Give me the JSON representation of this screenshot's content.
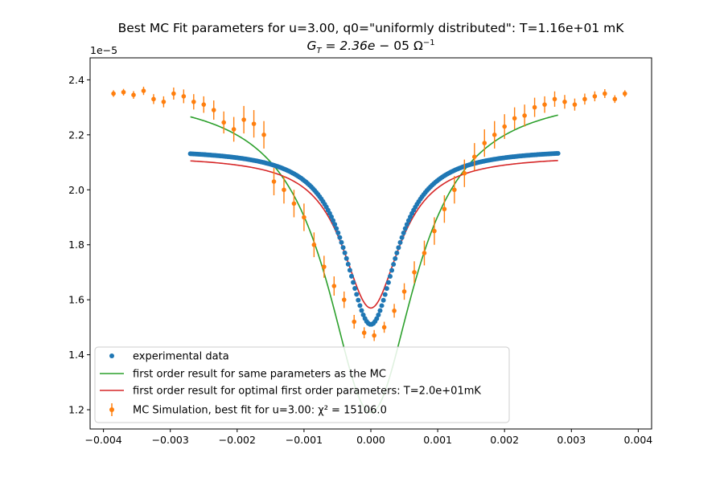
{
  "chart_data": {
    "type": "scatter",
    "title": "Best MC Fit parameters for u=3.00, q0=\"uniformly distributed\":  T=1.16e+01 mK",
    "subtitle": "G_T = 2.36e−05 Ω^−1",
    "xlabel": "",
    "ylabel": "",
    "y_offset_label": "1e−5",
    "xlim": [
      -0.0042,
      0.0042
    ],
    "ylim": [
      1.13,
      2.48
    ],
    "y_scale_note": "values in units of 1e-5",
    "x_ticks": [
      -0.004,
      -0.003,
      -0.002,
      -0.001,
      0.0,
      0.001,
      0.002,
      0.003,
      0.004
    ],
    "x_tick_labels": [
      "−0.004",
      "−0.003",
      "−0.002",
      "−0.001",
      "0.000",
      "0.001",
      "0.002",
      "0.003",
      "0.004"
    ],
    "y_ticks": [
      1.2,
      1.4,
      1.6,
      1.8,
      2.0,
      2.2,
      2.4
    ],
    "y_tick_labels": [
      "1.2",
      "1.4",
      "1.6",
      "1.8",
      "2.0",
      "2.2",
      "2.4"
    ],
    "grid": false,
    "legend_position": "lower-left",
    "series": [
      {
        "name": "experimental data",
        "kind": "points",
        "color": "#1f77b4",
        "model": "dip",
        "x_range": [
          -0.0027,
          0.0028
        ],
        "baseline": 2.15,
        "min_value": 1.51,
        "width": 0.00047,
        "count": 220
      },
      {
        "name": "first order result for same parameters as the MC",
        "kind": "line",
        "color": "#2ca02c",
        "model": "dip",
        "x_range": [
          -0.0027,
          0.0028
        ],
        "baseline": 2.36,
        "min_value": 1.19,
        "width": 0.0008
      },
      {
        "name": "first order result for optimal first order parameters: T=2.0e+01mK",
        "kind": "line",
        "color": "#d62728",
        "model": "dip",
        "x_range": [
          -0.0027,
          0.0028
        ],
        "baseline": 2.125,
        "min_value": 1.57,
        "width": 0.00052
      },
      {
        "name": "MC Simulation, best fit for u=3.00:  χ² = 15106.0",
        "kind": "errorbar",
        "color": "#ff7f0e",
        "x": [
          -0.00385,
          -0.0037,
          -0.00355,
          -0.0034,
          -0.00325,
          -0.0031,
          -0.00295,
          -0.0028,
          -0.00265,
          -0.0025,
          -0.00235,
          -0.0022,
          -0.00205,
          -0.0019,
          -0.00175,
          -0.0016,
          -0.00145,
          -0.0013,
          -0.00115,
          -0.001,
          -0.00085,
          -0.0007,
          -0.00055,
          -0.0004,
          -0.00025,
          -0.0001,
          5e-05,
          0.0002,
          0.00035,
          0.0005,
          0.00065,
          0.0008,
          0.00095,
          0.0011,
          0.00125,
          0.0014,
          0.00155,
          0.0017,
          0.00185,
          0.002,
          0.00215,
          0.0023,
          0.00245,
          0.0026,
          0.00275,
          0.0029,
          0.00305,
          0.0032,
          0.00335,
          0.0035,
          0.00365,
          0.0038
        ],
        "y": [
          2.35,
          2.355,
          2.345,
          2.36,
          2.33,
          2.32,
          2.35,
          2.34,
          2.32,
          2.31,
          2.29,
          2.245,
          2.22,
          2.255,
          2.24,
          2.2,
          2.03,
          2.0,
          1.95,
          1.9,
          1.8,
          1.72,
          1.65,
          1.6,
          1.52,
          1.48,
          1.47,
          1.5,
          1.56,
          1.63,
          1.7,
          1.77,
          1.85,
          1.93,
          2.0,
          2.06,
          2.12,
          2.17,
          2.2,
          2.23,
          2.26,
          2.27,
          2.3,
          2.31,
          2.33,
          2.32,
          2.31,
          2.33,
          2.34,
          2.35,
          2.33,
          2.35
        ],
        "yerr": [
          0.012,
          0.012,
          0.014,
          0.015,
          0.018,
          0.02,
          0.022,
          0.025,
          0.028,
          0.03,
          0.035,
          0.04,
          0.045,
          0.05,
          0.05,
          0.05,
          0.05,
          0.05,
          0.05,
          0.05,
          0.045,
          0.04,
          0.035,
          0.03,
          0.025,
          0.02,
          0.02,
          0.02,
          0.025,
          0.03,
          0.04,
          0.045,
          0.05,
          0.05,
          0.05,
          0.05,
          0.05,
          0.05,
          0.05,
          0.045,
          0.04,
          0.04,
          0.035,
          0.03,
          0.028,
          0.025,
          0.022,
          0.02,
          0.018,
          0.016,
          0.014,
          0.012
        ]
      }
    ]
  }
}
